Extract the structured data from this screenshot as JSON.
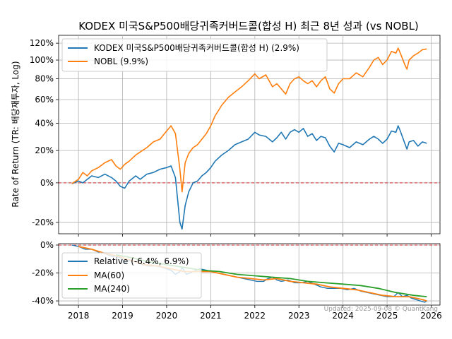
{
  "chart_data": [
    {
      "type": "line",
      "title": "KODEX 미국S&P500배당귀족커버드콜(합성 H) 최근 8년 성과 (vs NOBL)",
      "ylabel": "Rate of Return (TR: 배당재투자, Log)",
      "yscale": "log(1+r)",
      "ylim": [
        -25,
        130
      ],
      "yticks": [
        -20,
        0,
        20,
        40,
        60,
        80,
        100,
        120
      ],
      "ytick_labels": [
        "-20%",
        "0%",
        "20%",
        "40%",
        "60%",
        "80%",
        "100%",
        "120%"
      ],
      "xlim": [
        2017.55,
        2026.2
      ],
      "reference_line": {
        "y": 0,
        "color": "#d62728",
        "style": "dashed"
      },
      "grid": true,
      "legend_position": "top-left",
      "series": [
        {
          "name": "KODEX 미국S&P500배당귀족커버드콜(합성 H) (2.9%)",
          "color": "#1f77b4",
          "points": [
            [
              2017.85,
              -0.5
            ],
            [
              2018.0,
              1
            ],
            [
              2018.1,
              0
            ],
            [
              2018.2,
              2
            ],
            [
              2018.3,
              4
            ],
            [
              2018.45,
              3
            ],
            [
              2018.6,
              5
            ],
            [
              2018.75,
              3
            ],
            [
              2018.85,
              1
            ],
            [
              2018.95,
              -2
            ],
            [
              2019.05,
              -3
            ],
            [
              2019.15,
              1
            ],
            [
              2019.3,
              4
            ],
            [
              2019.4,
              2
            ],
            [
              2019.55,
              5
            ],
            [
              2019.7,
              6
            ],
            [
              2019.85,
              8
            ],
            [
              2020.0,
              9
            ],
            [
              2020.1,
              10
            ],
            [
              2020.2,
              3
            ],
            [
              2020.3,
              -20
            ],
            [
              2020.35,
              -23
            ],
            [
              2020.42,
              -12
            ],
            [
              2020.5,
              -5
            ],
            [
              2020.6,
              0
            ],
            [
              2020.7,
              1
            ],
            [
              2020.8,
              4
            ],
            [
              2020.9,
              6
            ],
            [
              2021.0,
              9
            ],
            [
              2021.1,
              13
            ],
            [
              2021.25,
              17
            ],
            [
              2021.4,
              20
            ],
            [
              2021.55,
              24
            ],
            [
              2021.7,
              26
            ],
            [
              2021.85,
              28
            ],
            [
              2022.0,
              33
            ],
            [
              2022.1,
              31
            ],
            [
              2022.25,
              30
            ],
            [
              2022.4,
              26
            ],
            [
              2022.5,
              29
            ],
            [
              2022.6,
              33
            ],
            [
              2022.7,
              28
            ],
            [
              2022.8,
              33
            ],
            [
              2022.9,
              35
            ],
            [
              2023.0,
              33
            ],
            [
              2023.1,
              36
            ],
            [
              2023.2,
              30
            ],
            [
              2023.3,
              32
            ],
            [
              2023.4,
              27
            ],
            [
              2023.5,
              30
            ],
            [
              2023.6,
              29
            ],
            [
              2023.7,
              23
            ],
            [
              2023.8,
              19
            ],
            [
              2023.9,
              25
            ],
            [
              2024.0,
              24
            ],
            [
              2024.15,
              22
            ],
            [
              2024.3,
              26
            ],
            [
              2024.45,
              24
            ],
            [
              2024.6,
              28
            ],
            [
              2024.7,
              30
            ],
            [
              2024.8,
              28
            ],
            [
              2024.9,
              25
            ],
            [
              2025.0,
              28
            ],
            [
              2025.1,
              34
            ],
            [
              2025.2,
              33
            ],
            [
              2025.25,
              38
            ],
            [
              2025.3,
              34
            ],
            [
              2025.4,
              25
            ],
            [
              2025.45,
              21
            ],
            [
              2025.5,
              26
            ],
            [
              2025.6,
              27
            ],
            [
              2025.7,
              23
            ],
            [
              2025.8,
              26
            ],
            [
              2025.9,
              25
            ]
          ]
        },
        {
          "name": "NOBL (9.9%)",
          "color": "#ff7f0e",
          "points": [
            [
              2017.85,
              -0.5
            ],
            [
              2018.0,
              2
            ],
            [
              2018.1,
              6
            ],
            [
              2018.2,
              4
            ],
            [
              2018.3,
              7
            ],
            [
              2018.45,
              9
            ],
            [
              2018.6,
              12
            ],
            [
              2018.75,
              14
            ],
            [
              2018.85,
              10
            ],
            [
              2018.95,
              8
            ],
            [
              2019.05,
              11
            ],
            [
              2019.15,
              13
            ],
            [
              2019.3,
              17
            ],
            [
              2019.4,
              19
            ],
            [
              2019.55,
              22
            ],
            [
              2019.7,
              26
            ],
            [
              2019.85,
              28
            ],
            [
              2020.0,
              34
            ],
            [
              2020.1,
              38
            ],
            [
              2020.2,
              32
            ],
            [
              2020.3,
              8
            ],
            [
              2020.35,
              -5
            ],
            [
              2020.42,
              12
            ],
            [
              2020.5,
              18
            ],
            [
              2020.6,
              22
            ],
            [
              2020.7,
              24
            ],
            [
              2020.8,
              28
            ],
            [
              2020.9,
              32
            ],
            [
              2021.0,
              38
            ],
            [
              2021.1,
              46
            ],
            [
              2021.25,
              55
            ],
            [
              2021.4,
              62
            ],
            [
              2021.55,
              67
            ],
            [
              2021.7,
              72
            ],
            [
              2021.85,
              78
            ],
            [
              2022.0,
              85
            ],
            [
              2022.1,
              80
            ],
            [
              2022.25,
              84
            ],
            [
              2022.4,
              72
            ],
            [
              2022.5,
              75
            ],
            [
              2022.6,
              70
            ],
            [
              2022.7,
              65
            ],
            [
              2022.8,
              75
            ],
            [
              2022.9,
              80
            ],
            [
              2023.0,
              82
            ],
            [
              2023.1,
              78
            ],
            [
              2023.2,
              75
            ],
            [
              2023.3,
              78
            ],
            [
              2023.4,
              72
            ],
            [
              2023.5,
              78
            ],
            [
              2023.6,
              82
            ],
            [
              2023.7,
              70
            ],
            [
              2023.8,
              66
            ],
            [
              2023.9,
              75
            ],
            [
              2024.0,
              80
            ],
            [
              2024.15,
              80
            ],
            [
              2024.3,
              86
            ],
            [
              2024.45,
              82
            ],
            [
              2024.6,
              92
            ],
            [
              2024.7,
              100
            ],
            [
              2024.8,
              103
            ],
            [
              2024.9,
              95
            ],
            [
              2025.0,
              100
            ],
            [
              2025.1,
              110
            ],
            [
              2025.2,
              108
            ],
            [
              2025.25,
              114
            ],
            [
              2025.3,
              108
            ],
            [
              2025.4,
              95
            ],
            [
              2025.45,
              90
            ],
            [
              2025.5,
              100
            ],
            [
              2025.6,
              105
            ],
            [
              2025.7,
              108
            ],
            [
              2025.8,
              112
            ],
            [
              2025.9,
              113
            ]
          ]
        }
      ]
    },
    {
      "type": "line",
      "title": "",
      "ylabel": "",
      "ylim": [
        -43,
        1
      ],
      "yticks": [
        0,
        -20,
        -40
      ],
      "ytick_labels": [
        "0%",
        "-20%",
        "-40%"
      ],
      "xlim": [
        2017.55,
        2026.2
      ],
      "xticks": [
        2018,
        2019,
        2020,
        2021,
        2022,
        2023,
        2024,
        2025,
        2026
      ],
      "xtick_labels": [
        "2018",
        "2019",
        "2020",
        "2021",
        "2022",
        "2023",
        "2024",
        "2025",
        "2026"
      ],
      "reference_line": {
        "y": 0,
        "color": "#d62728",
        "style": "dashed"
      },
      "grid": true,
      "legend_position": "bottom-left",
      "series": [
        {
          "name": "Relative (-6.4%, 6.9%)",
          "color": "#1f77b4",
          "points": [
            [
              2017.85,
              0
            ],
            [
              2018.0,
              -1
            ],
            [
              2018.15,
              -3
            ],
            [
              2018.3,
              -3
            ],
            [
              2018.45,
              -5
            ],
            [
              2018.6,
              -6
            ],
            [
              2018.75,
              -8
            ],
            [
              2018.85,
              -8
            ],
            [
              2018.95,
              -9
            ],
            [
              2019.05,
              -13
            ],
            [
              2019.15,
              -11
            ],
            [
              2019.3,
              -12
            ],
            [
              2019.45,
              -14
            ],
            [
              2019.6,
              -15
            ],
            [
              2019.75,
              -15
            ],
            [
              2019.9,
              -16
            ],
            [
              2020.0,
              -17
            ],
            [
              2020.1,
              -18
            ],
            [
              2020.2,
              -21
            ],
            [
              2020.3,
              -19
            ],
            [
              2020.35,
              -16
            ],
            [
              2020.45,
              -21
            ],
            [
              2020.6,
              -19
            ],
            [
              2020.75,
              -17
            ],
            [
              2020.9,
              -18
            ],
            [
              2021.0,
              -19
            ],
            [
              2021.15,
              -20
            ],
            [
              2021.3,
              -21
            ],
            [
              2021.45,
              -22
            ],
            [
              2021.6,
              -23
            ],
            [
              2021.75,
              -24
            ],
            [
              2021.9,
              -25
            ],
            [
              2022.05,
              -26
            ],
            [
              2022.2,
              -26
            ],
            [
              2022.3,
              -24
            ],
            [
              2022.4,
              -23
            ],
            [
              2022.5,
              -25
            ],
            [
              2022.6,
              -26
            ],
            [
              2022.75,
              -25
            ],
            [
              2022.9,
              -27
            ],
            [
              2023.05,
              -27
            ],
            [
              2023.2,
              -26
            ],
            [
              2023.35,
              -28
            ],
            [
              2023.5,
              -30
            ],
            [
              2023.65,
              -31
            ],
            [
              2023.8,
              -31
            ],
            [
              2023.95,
              -31
            ],
            [
              2024.1,
              -32
            ],
            [
              2024.25,
              -31
            ],
            [
              2024.4,
              -33
            ],
            [
              2024.55,
              -34
            ],
            [
              2024.7,
              -35
            ],
            [
              2024.85,
              -36
            ],
            [
              2025.0,
              -37
            ],
            [
              2025.15,
              -37
            ],
            [
              2025.25,
              -34
            ],
            [
              2025.35,
              -37
            ],
            [
              2025.45,
              -36
            ],
            [
              2025.55,
              -38
            ],
            [
              2025.65,
              -39
            ],
            [
              2025.75,
              -40
            ],
            [
              2025.85,
              -41
            ],
            [
              2025.9,
              -40
            ]
          ]
        },
        {
          "name": "MA(60)",
          "color": "#ff7f0e",
          "points": [
            [
              2018.0,
              -1
            ],
            [
              2018.3,
              -3
            ],
            [
              2018.6,
              -6
            ],
            [
              2018.9,
              -8
            ],
            [
              2019.2,
              -11
            ],
            [
              2019.5,
              -14
            ],
            [
              2019.8,
              -15
            ],
            [
              2020.1,
              -17
            ],
            [
              2020.4,
              -19
            ],
            [
              2020.7,
              -19
            ],
            [
              2021.0,
              -19
            ],
            [
              2021.3,
              -21
            ],
            [
              2021.6,
              -23
            ],
            [
              2021.9,
              -24
            ],
            [
              2022.2,
              -25
            ],
            [
              2022.5,
              -24
            ],
            [
              2022.8,
              -26
            ],
            [
              2023.1,
              -27
            ],
            [
              2023.4,
              -28
            ],
            [
              2023.7,
              -30
            ],
            [
              2024.0,
              -31
            ],
            [
              2024.3,
              -32
            ],
            [
              2024.6,
              -34
            ],
            [
              2024.9,
              -36
            ],
            [
              2025.2,
              -37
            ],
            [
              2025.5,
              -37
            ],
            [
              2025.8,
              -39
            ],
            [
              2025.9,
              -40
            ]
          ]
        },
        {
          "name": "MA(240)",
          "color": "#2ca02c",
          "points": [
            [
              2018.85,
              -7
            ],
            [
              2019.2,
              -9
            ],
            [
              2019.6,
              -12
            ],
            [
              2020.0,
              -14
            ],
            [
              2020.4,
              -16
            ],
            [
              2020.8,
              -18
            ],
            [
              2021.2,
              -19
            ],
            [
              2021.6,
              -21
            ],
            [
              2022.0,
              -22
            ],
            [
              2022.4,
              -23
            ],
            [
              2022.8,
              -24
            ],
            [
              2023.2,
              -26
            ],
            [
              2023.6,
              -27
            ],
            [
              2024.0,
              -28
            ],
            [
              2024.4,
              -29
            ],
            [
              2024.8,
              -31
            ],
            [
              2025.2,
              -34
            ],
            [
              2025.6,
              -36
            ],
            [
              2025.9,
              -37
            ]
          ]
        }
      ]
    }
  ],
  "watermark": "Updated: 2025-09-08 © QuantKang"
}
